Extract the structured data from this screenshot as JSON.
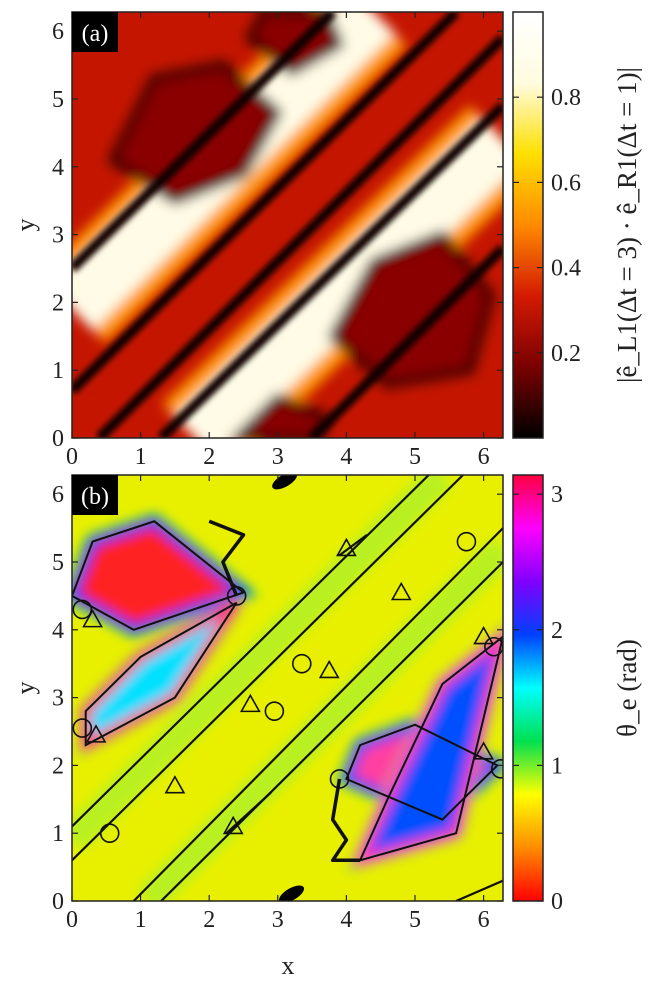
{
  "chart_data": [
    {
      "type": "heatmap",
      "panel_label": "(a)",
      "xlabel": "",
      "ylabel": "y",
      "xlim": [
        0,
        6.283
      ],
      "ylim": [
        0,
        6.283
      ],
      "x_ticks": [
        "0",
        "1",
        "2",
        "3",
        "4",
        "5",
        "6"
      ],
      "y_ticks": [
        "0",
        "1",
        "2",
        "3",
        "4",
        "5",
        "6"
      ],
      "colorbar": {
        "label": "|ê_L1(Δt = 3) · ê_R1(Δt = 1)|",
        "range": [
          0,
          1
        ],
        "ticks": [
          "0.2",
          "0.4",
          "0.6",
          "0.8"
        ],
        "tick_values": [
          0.2,
          0.4,
          0.6,
          0.8
        ],
        "colormap": [
          "#000000",
          "#7a0000",
          "#d41a00",
          "#ff8a00",
          "#ffe000",
          "#fffce0",
          "#ffffff"
        ]
      },
      "dark_lines": [
        [
          [
            0,
            0.7
          ],
          [
            5.6,
            6.283
          ]
        ],
        [
          [
            0.4,
            0
          ],
          [
            6.283,
            5.9
          ]
        ],
        [
          [
            1.3,
            0
          ],
          [
            6.283,
            4.9
          ]
        ],
        [
          [
            0,
            2.5
          ],
          [
            3.8,
            6.283
          ]
        ],
        [
          [
            3.5,
            0
          ],
          [
            6.283,
            2.8
          ]
        ]
      ],
      "dark_lobes": [
        [
          [
            0.6,
            4.1
          ],
          [
            1.5,
            3.5
          ],
          [
            2.5,
            3.9
          ],
          [
            3.0,
            4.8
          ],
          [
            2.2,
            5.5
          ],
          [
            1.2,
            5.3
          ]
        ],
        [
          [
            3.8,
            1.5
          ],
          [
            4.6,
            0.8
          ],
          [
            5.8,
            1.0
          ],
          [
            6.1,
            2.1
          ],
          [
            5.4,
            3.0
          ],
          [
            4.4,
            2.6
          ]
        ],
        [
          [
            2.6,
            5.9
          ],
          [
            3.2,
            5.4
          ],
          [
            3.9,
            5.8
          ],
          [
            3.7,
            6.283
          ],
          [
            2.8,
            6.283
          ]
        ],
        [
          [
            2.4,
            0
          ],
          [
            3.0,
            0.6
          ],
          [
            3.7,
            0.3
          ],
          [
            3.6,
            0
          ]
        ]
      ],
      "bright_bands": [
        [
          [
            0,
            1.9
          ],
          [
            4.4,
            6.283
          ]
        ],
        [
          [
            1.8,
            0
          ],
          [
            6.283,
            4.4
          ]
        ]
      ]
    },
    {
      "type": "heatmap",
      "panel_label": "(b)",
      "xlabel": "x",
      "ylabel": "y",
      "xlim": [
        0,
        6.283
      ],
      "ylim": [
        0,
        6.283
      ],
      "x_ticks": [
        "0",
        "1",
        "2",
        "3",
        "4",
        "5",
        "6"
      ],
      "y_ticks": [
        "0",
        "1",
        "2",
        "3",
        "4",
        "5",
        "6"
      ],
      "colorbar": {
        "label": "θ_e (rad)",
        "range": [
          0,
          3.1416
        ],
        "ticks": [
          "0",
          "1",
          "2",
          "3"
        ],
        "tick_values": [
          0,
          1,
          2,
          3
        ],
        "colormap": [
          "#ff0000",
          "#ff8c00",
          "#ffff00",
          "#00e050",
          "#00ffff",
          "#0040ff",
          "#8000ff",
          "#ff00ff",
          "#ff0040"
        ]
      },
      "contour_lines": [
        [
          [
            0,
            0.6
          ],
          [
            5.7,
            6.283
          ]
        ],
        [
          [
            0,
            1.1
          ],
          [
            5.2,
            6.283
          ]
        ],
        [
          [
            0.9,
            0
          ],
          [
            6.283,
            5.5
          ]
        ],
        [
          [
            1.3,
            0
          ],
          [
            6.283,
            5.0
          ]
        ],
        [
          [
            5.6,
            0
          ],
          [
            6.283,
            0.3
          ]
        ],
        [
          [
            2.25,
            1.0
          ],
          [
            2.9,
            1.6
          ]
        ],
        [
          [
            3.9,
            5.1
          ],
          [
            4.3,
            5.4
          ]
        ]
      ],
      "lobes": [
        [
          [
            0,
            4.5
          ],
          [
            0.9,
            4.0
          ],
          [
            2.5,
            4.55
          ],
          [
            1.2,
            5.6
          ],
          [
            0.3,
            5.3
          ]
        ],
        [
          [
            0.2,
            2.3
          ],
          [
            1.5,
            3.0
          ],
          [
            2.4,
            4.4
          ],
          [
            1.0,
            3.6
          ],
          [
            0.2,
            2.8
          ]
        ],
        [
          [
            4.0,
            1.8
          ],
          [
            5.4,
            1.2
          ],
          [
            6.2,
            2.0
          ],
          [
            5.0,
            2.6
          ],
          [
            4.2,
            2.3
          ]
        ],
        [
          [
            4.2,
            0.6
          ],
          [
            5.6,
            1.0
          ],
          [
            6.283,
            3.9
          ],
          [
            5.4,
            3.2
          ],
          [
            4.6,
            1.5
          ]
        ]
      ],
      "dark_spots": [
        [
          3.1,
          6.2
        ],
        [
          3.2,
          0.1
        ]
      ],
      "s_curves": [
        [
          [
            2.0,
            5.6
          ],
          [
            2.5,
            5.4
          ],
          [
            2.2,
            5.0
          ],
          [
            2.4,
            4.5
          ]
        ],
        [
          [
            3.9,
            1.8
          ],
          [
            3.8,
            1.2
          ],
          [
            4.0,
            0.9
          ],
          [
            3.8,
            0.6
          ],
          [
            4.2,
            0.6
          ]
        ]
      ],
      "circles": [
        [
          0.15,
          4.3
        ],
        [
          0.15,
          2.55
        ],
        [
          0.55,
          1.0
        ],
        [
          2.4,
          4.5
        ],
        [
          2.95,
          2.8
        ],
        [
          3.35,
          3.5
        ],
        [
          3.9,
          1.8
        ],
        [
          5.75,
          5.3
        ],
        [
          6.15,
          3.75
        ],
        [
          6.25,
          1.95
        ]
      ],
      "triangles": [
        [
          0.3,
          4.15
        ],
        [
          0.35,
          2.45
        ],
        [
          1.5,
          1.7
        ],
        [
          2.35,
          1.1
        ],
        [
          2.6,
          2.9
        ],
        [
          3.75,
          3.4
        ],
        [
          4.0,
          5.2
        ],
        [
          4.8,
          4.55
        ],
        [
          6.0,
          3.9
        ],
        [
          6.0,
          2.2
        ]
      ]
    }
  ]
}
